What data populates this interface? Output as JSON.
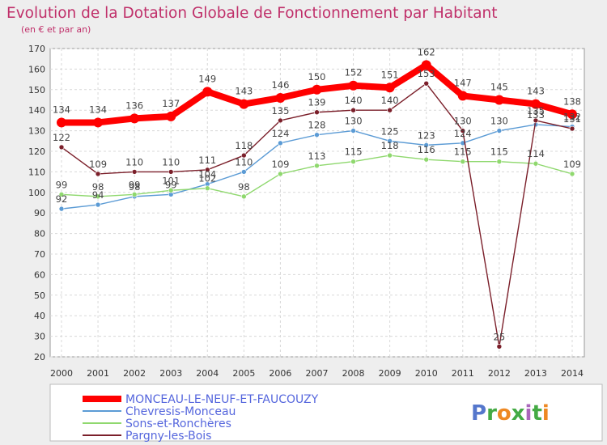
{
  "chart_data": {
    "type": "line",
    "title": "Evolution de la Dotation Globale de Fonctionnement par Habitant",
    "subtitle": "(en € et par an)",
    "xlabel": "",
    "ylabel": "",
    "ylim": [
      20,
      170
    ],
    "yticks": [
      20,
      30,
      40,
      50,
      60,
      70,
      80,
      90,
      100,
      110,
      120,
      130,
      140,
      150,
      160,
      170
    ],
    "grid": true,
    "legend_position": "bottom-left",
    "categories": [
      "2000",
      "2001",
      "2002",
      "2003",
      "2004",
      "2005",
      "2006",
      "2007",
      "2008",
      "2009",
      "2010",
      "2011",
      "2012",
      "2013",
      "2014"
    ],
    "series": [
      {
        "name": "MONCEAU-LE-NEUF-ET-FAUCOUZY",
        "color": "#ff0000",
        "width": "bold",
        "values": [
          134,
          134,
          136,
          137,
          149,
          143,
          146,
          150,
          152,
          151,
          162,
          147,
          145,
          143,
          138
        ],
        "labels": [
          "134",
          "134",
          "136",
          "137",
          "149",
          "143",
          "146",
          "150",
          "152",
          "151",
          "162",
          "147",
          "145",
          "143",
          "138"
        ]
      },
      {
        "name": "Chevresis-Monceau",
        "color": "#5b9bd5",
        "width": "thin",
        "values": [
          92,
          94,
          98,
          99,
          104,
          110,
          124,
          128,
          130,
          125,
          123,
          124,
          130,
          133,
          132
        ],
        "labels": [
          "92",
          "94",
          "98",
          "99",
          "104",
          "110",
          "124",
          "128",
          "130",
          "125",
          "123",
          "124",
          "130",
          "133",
          "132"
        ]
      },
      {
        "name": "Sons-et-Ronchères",
        "color": "#8fd86e",
        "width": "thin",
        "values": [
          99,
          98,
          99,
          101,
          102,
          98,
          109,
          113,
          115,
          118,
          116,
          115,
          115,
          114,
          109
        ],
        "labels": [
          "99",
          "98",
          "99",
          "101",
          "102",
          "98",
          "109",
          "113",
          "115",
          "118",
          "116",
          "115",
          "115",
          "114",
          "109"
        ]
      },
      {
        "name": "Pargny-les-Bois",
        "color": "#7b1f2a",
        "width": "thin",
        "values": [
          122,
          109,
          110,
          110,
          111,
          118,
          135,
          139,
          140,
          140,
          153,
          130,
          25,
          135,
          131
        ],
        "labels": [
          "122",
          "109",
          "110",
          "110",
          "111",
          "118",
          "135",
          "139",
          "140",
          "140",
          "153",
          "130",
          "25",
          "135",
          "131"
        ]
      }
    ]
  },
  "logo": {
    "text": "Proxiti",
    "letters": [
      "P",
      "r",
      "o",
      "x",
      "i",
      "t",
      "i"
    ]
  },
  "colors": {
    "title": "#c0306a",
    "legend_text": "#5566dd",
    "logo": [
      "#5577cc",
      "#44aa44",
      "#ee8822",
      "#44aa44",
      "#aa66bb",
      "#44aa44",
      "#ee8822"
    ]
  }
}
